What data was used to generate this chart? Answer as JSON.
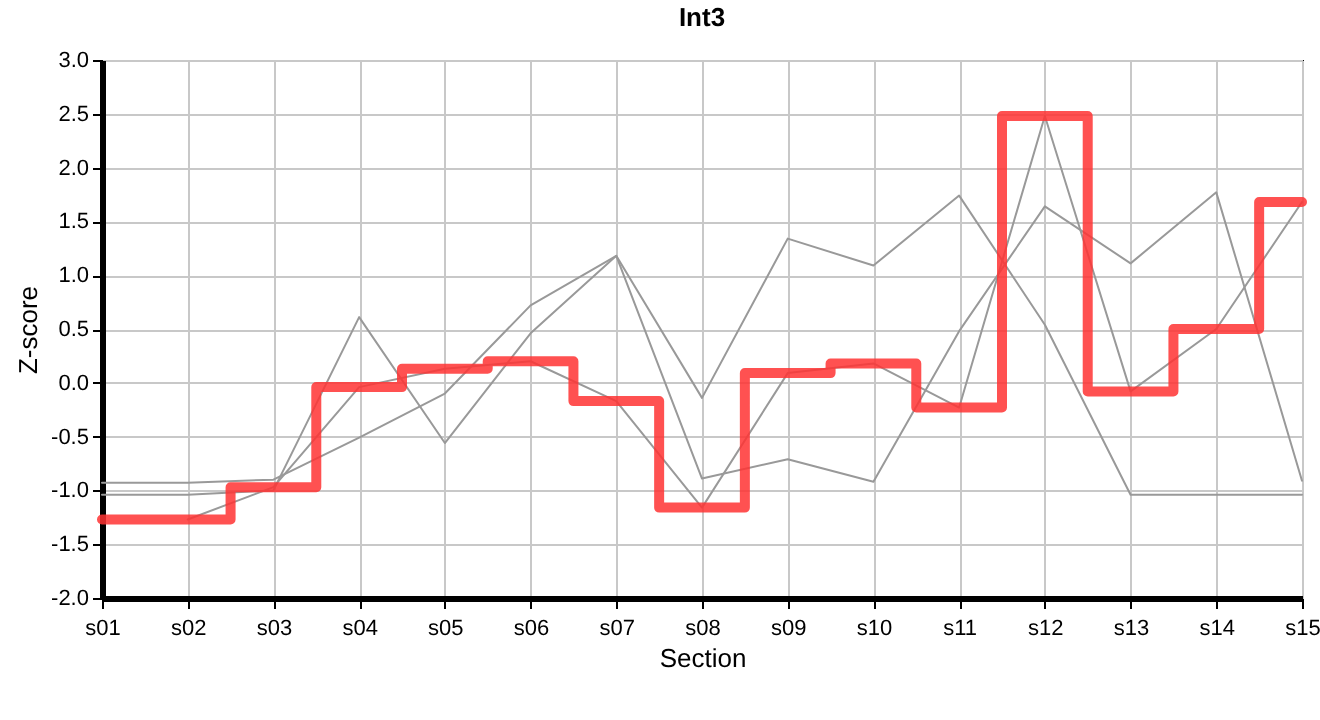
{
  "chart_data": {
    "type": "line",
    "title": "Int3",
    "xlabel": "Section",
    "ylabel": "Z-score",
    "categories": [
      "s01",
      "s02",
      "s03",
      "s04",
      "s05",
      "s06",
      "s07",
      "s08",
      "s09",
      "s10",
      "s11",
      "s12",
      "s13",
      "s14",
      "s15"
    ],
    "series": [
      {
        "color": "#999999",
        "values": [
          -0.93,
          -0.93,
          -0.9,
          -0.51,
          -0.1,
          0.72,
          1.18,
          -0.14,
          1.34,
          1.09,
          1.74,
          0.54,
          -1.04,
          -1.04,
          -1.04
        ]
      },
      {
        "color": "#999999",
        "values": [
          -1.04,
          -1.04,
          -1.0,
          0.61,
          -0.56,
          0.46,
          1.18,
          -0.89,
          -0.71,
          -0.92,
          0.48,
          1.64,
          1.11,
          1.77,
          -0.91
        ]
      },
      {
        "color": "#999999",
        "values": [
          null,
          -1.27,
          -0.97,
          -0.04,
          0.13,
          0.2,
          -0.17,
          -1.16,
          0.09,
          0.18,
          -0.23,
          2.48,
          -0.08,
          0.5,
          1.68
        ]
      },
      {
        "type": "step",
        "color": "#ff3333",
        "values": [
          -1.27,
          -1.27,
          -0.97,
          -0.04,
          0.13,
          0.2,
          -0.17,
          -1.16,
          0.09,
          0.18,
          -0.23,
          2.48,
          -0.08,
          0.5,
          1.68
        ]
      }
    ],
    "ylim": [
      -2,
      3
    ],
    "yticks": [
      {
        "value": -2,
        "label": "-2.0"
      },
      {
        "value": -1.5,
        "label": "-1.5"
      },
      {
        "value": -1,
        "label": "-1.0"
      },
      {
        "value": -0.5,
        "label": "-0.5"
      },
      {
        "value": 0,
        "label": "0.0"
      },
      {
        "value": 0.5,
        "label": "0.5"
      },
      {
        "value": 1,
        "label": "1.0"
      },
      {
        "value": 1.5,
        "label": "1.5"
      },
      {
        "value": 2,
        "label": "2.0"
      },
      {
        "value": 2.5,
        "label": "2.5"
      },
      {
        "value": 3,
        "label": "3.0"
      }
    ],
    "grid": true
  }
}
